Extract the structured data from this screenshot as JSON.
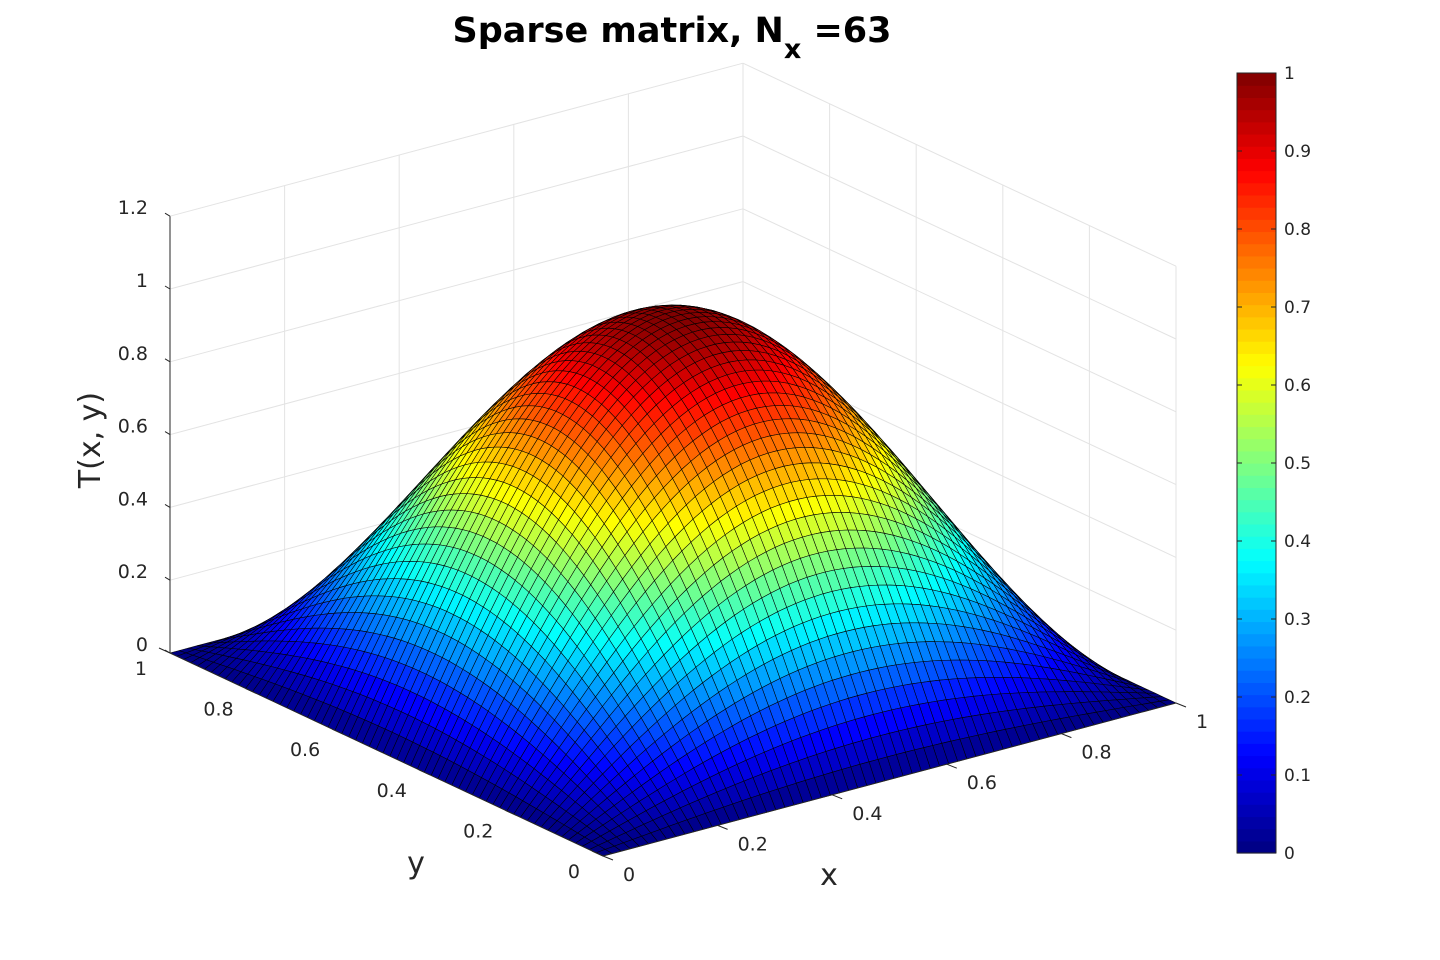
{
  "chart_data": {
    "type": "surface",
    "title": {
      "main": "Sparse matrix, N",
      "subscript": "x",
      "suffix": " =63"
    },
    "xlabel": "x",
    "ylabel": "y",
    "zlabel": "T(x, y)",
    "grid_points": 63,
    "function": "sin(pi*x)*sin(pi*y)",
    "xlim": [
      0,
      1
    ],
    "ylim": [
      0,
      1
    ],
    "zlim": [
      0,
      1.2
    ],
    "x_ticks": [
      "0",
      "0.2",
      "0.4",
      "0.6",
      "0.8",
      "1"
    ],
    "y_ticks": [
      "0",
      "0.2",
      "0.4",
      "0.6",
      "0.8",
      "1"
    ],
    "z_ticks": [
      "0",
      "0.2",
      "0.4",
      "0.6",
      "0.8",
      "1",
      "1.2"
    ],
    "x_tick_values": [
      0,
      0.2,
      0.4,
      0.6,
      0.8,
      1
    ],
    "y_tick_values": [
      0,
      0.2,
      0.4,
      0.6,
      0.8,
      1
    ],
    "z_tick_values": [
      0,
      0.2,
      0.4,
      0.6,
      0.8,
      1,
      1.2
    ],
    "peak": {
      "x": 0.5,
      "y": 0.5,
      "z": 1.0
    },
    "boundary_value": 0,
    "grid": true,
    "colormap": "jet",
    "edge_color": "#000000",
    "colorbar": {
      "location": "right",
      "range": [
        0,
        1
      ],
      "ticks": [
        "0",
        "0.1",
        "0.2",
        "0.3",
        "0.4",
        "0.5",
        "0.6",
        "0.7",
        "0.8",
        "0.9",
        "1"
      ],
      "tick_values": [
        0,
        0.1,
        0.2,
        0.3,
        0.4,
        0.5,
        0.6,
        0.7,
        0.8,
        0.9,
        1
      ]
    }
  }
}
